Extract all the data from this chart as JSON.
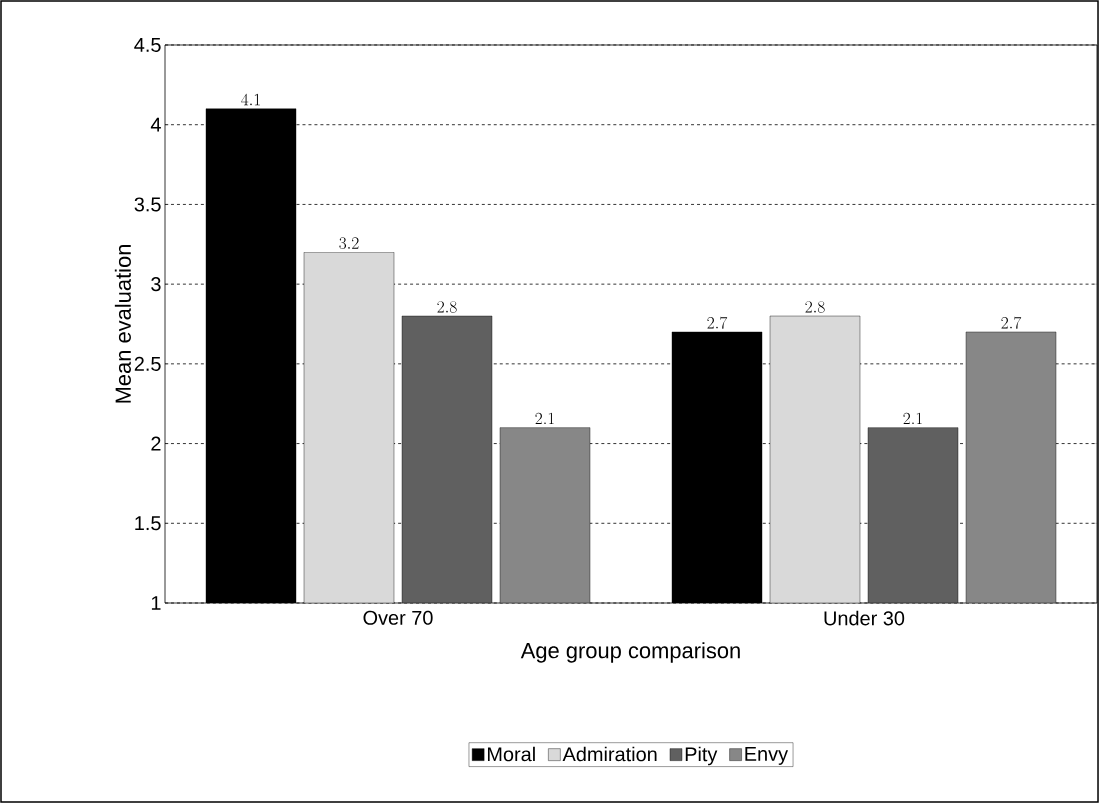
{
  "chart_data": {
    "type": "bar",
    "xlabel": "Age group comparison",
    "ylabel": "Mean evaluation",
    "categories": [
      "Over 70",
      "Under 30"
    ],
    "series": [
      {
        "name": "Moral",
        "color": "#000000",
        "values": [
          4.1,
          2.7
        ]
      },
      {
        "name": "Admiration",
        "color": "#d9d9d9",
        "values": [
          3.2,
          2.8
        ]
      },
      {
        "name": "Pity",
        "color": "#606060",
        "values": [
          2.8,
          2.1
        ]
      },
      {
        "name": "Envy",
        "color": "#878787",
        "values": [
          2.1,
          2.7
        ]
      }
    ],
    "ylim": [
      1,
      4.5
    ],
    "yticks": [
      1,
      1.5,
      2,
      2.5,
      3,
      3.5,
      4,
      4.5
    ],
    "grid": "y",
    "legend": "bottom",
    "data_labels": true
  }
}
